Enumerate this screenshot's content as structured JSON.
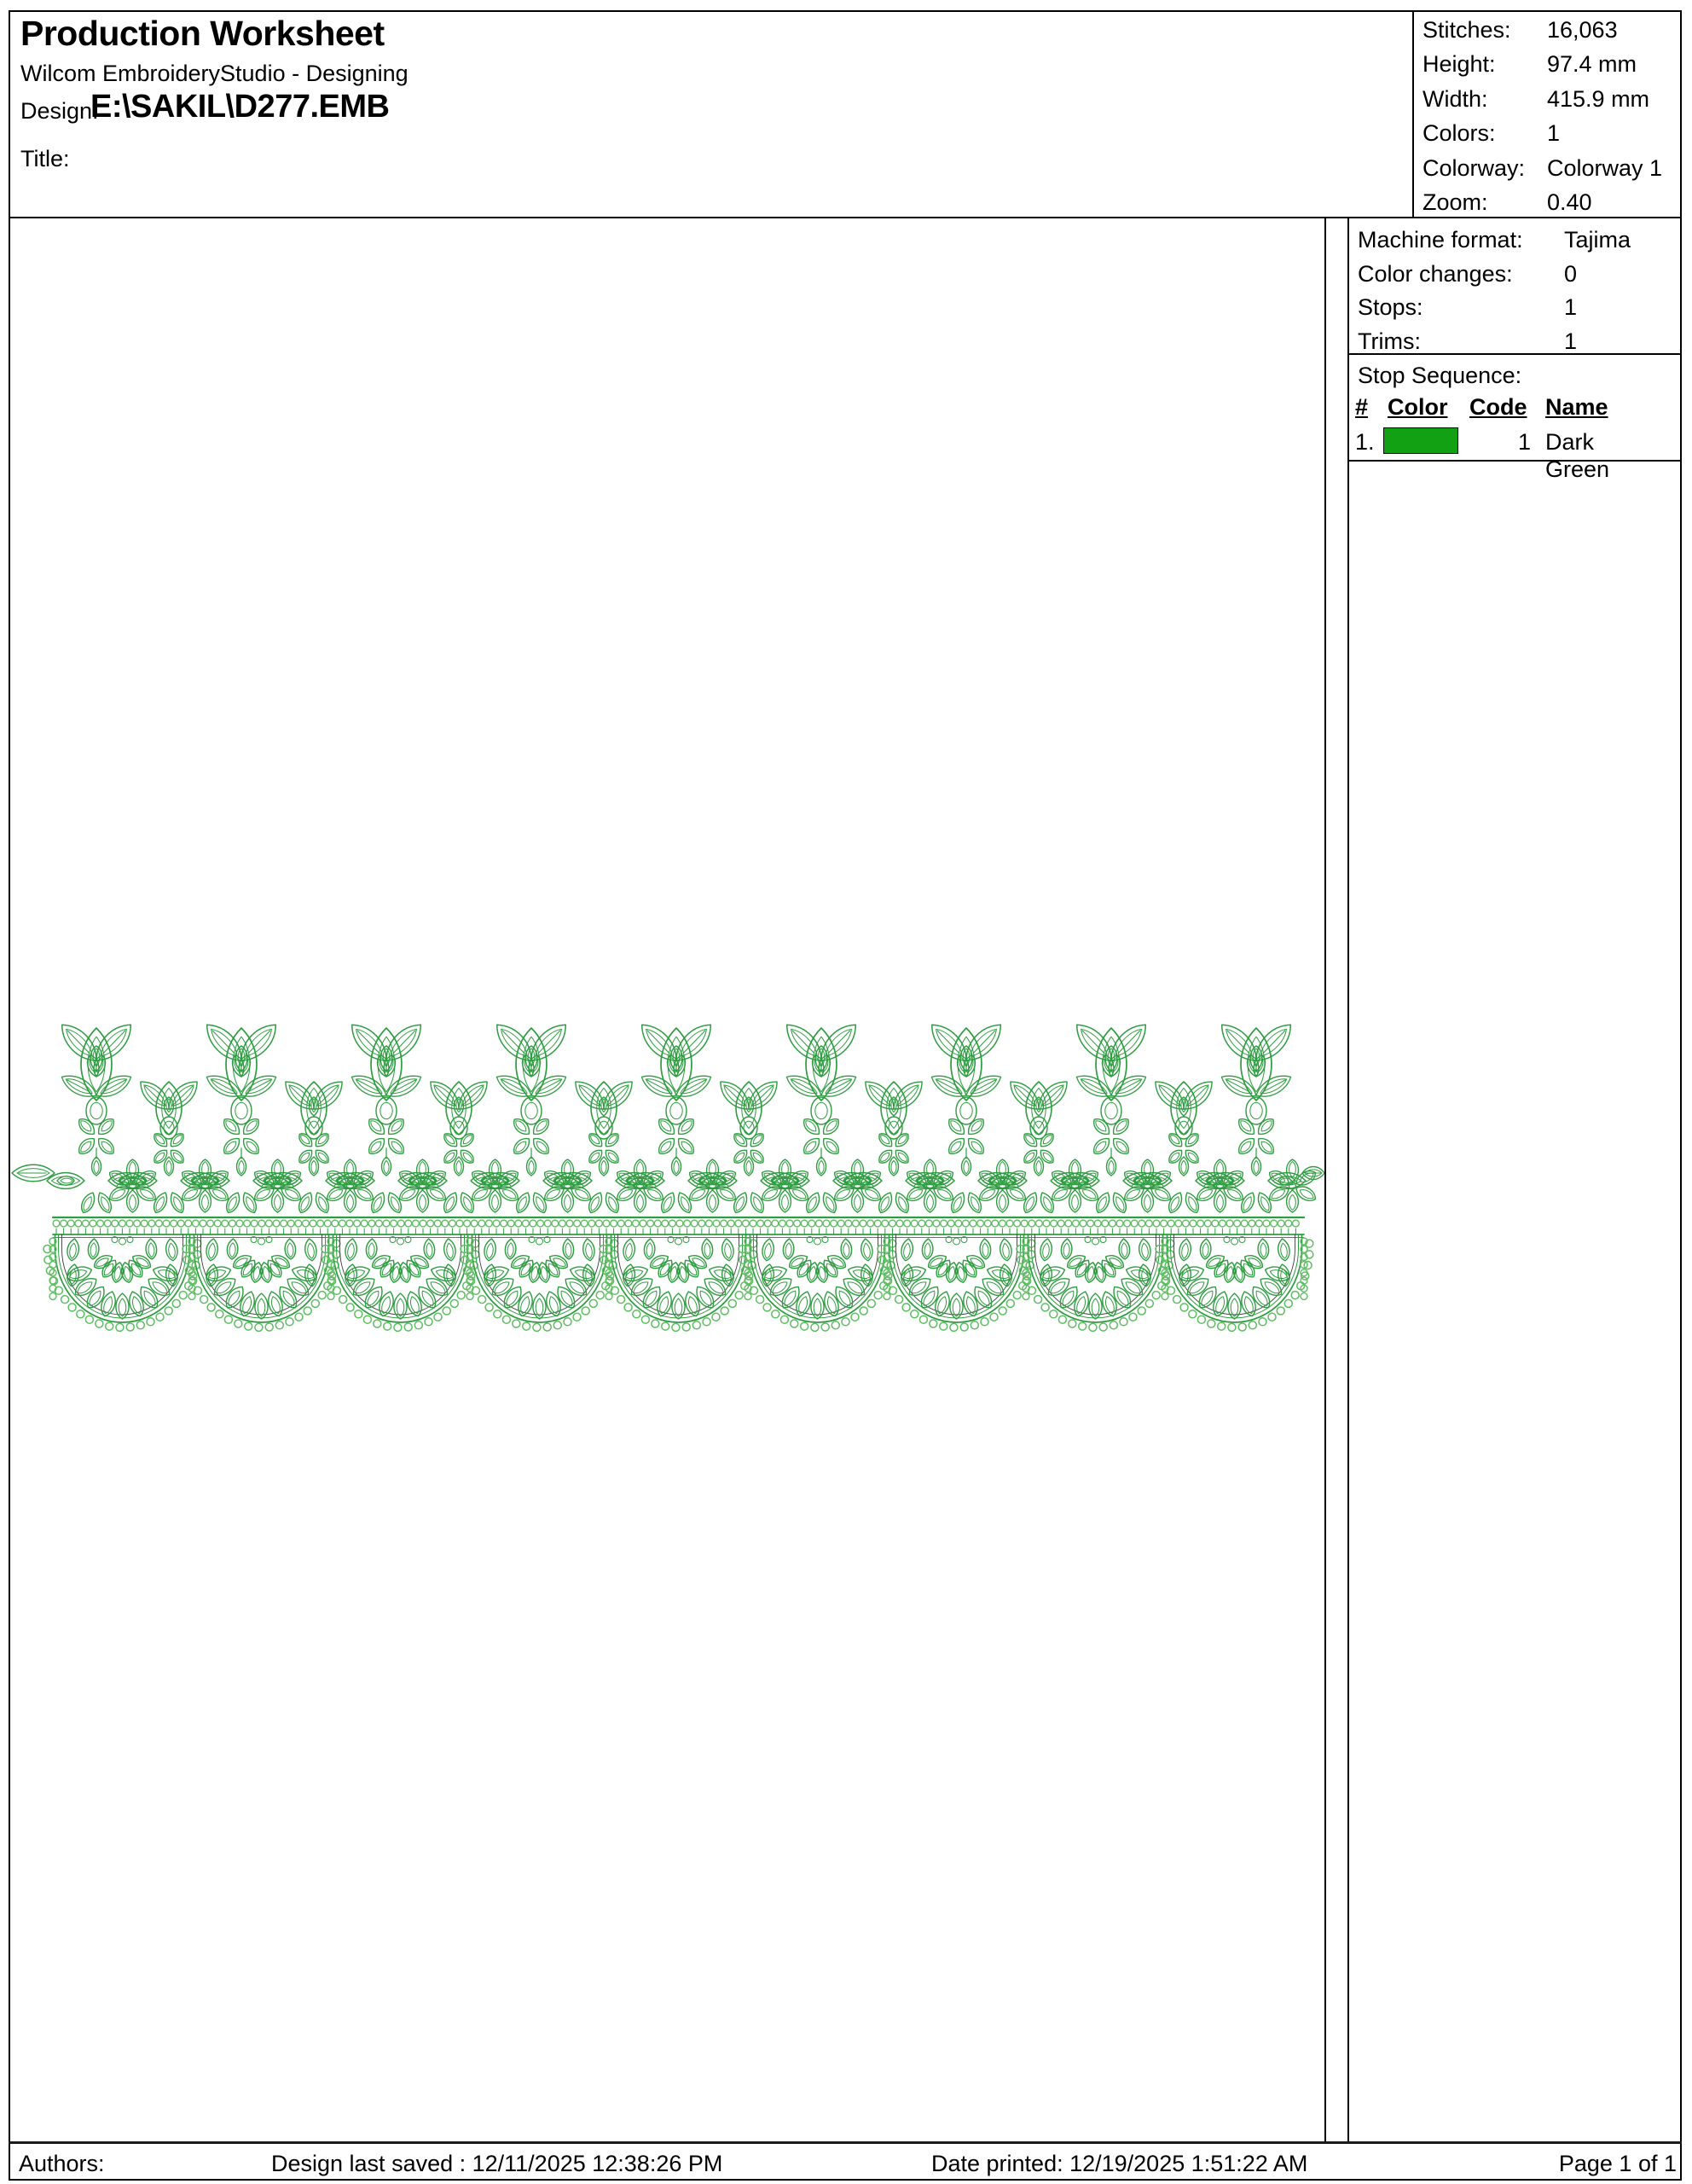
{
  "header": {
    "title": "Production Worksheet",
    "app_name": "Wilcom EmbroideryStudio - Designing",
    "design_label": "Design:",
    "design_value": "E:\\SAKIL\\D277.EMB",
    "title_label": "Title:"
  },
  "stats": {
    "rows": [
      {
        "label": "Stitches:",
        "value": "16,063"
      },
      {
        "label": "Height:",
        "value": "97.4 mm"
      },
      {
        "label": "Width:",
        "value": "415.9 mm"
      },
      {
        "label": "Colors:",
        "value": "1"
      },
      {
        "label": "Colorway:",
        "value": "Colorway 1"
      },
      {
        "label": "Zoom:",
        "value": "0.40"
      }
    ]
  },
  "machine": {
    "rows": [
      {
        "label": "Machine format:",
        "value": "Tajima"
      },
      {
        "label": "Color changes:",
        "value": "0"
      },
      {
        "label": "Stops:",
        "value": "1"
      },
      {
        "label": "Trims:",
        "value": "1"
      }
    ]
  },
  "stop_sequence": {
    "title": "Stop Sequence:",
    "columns": {
      "num": "#",
      "color": "Color",
      "code": "Code",
      "name": "Name"
    },
    "rows": [
      {
        "num": "1.",
        "swatch_color": "#12a112",
        "code": "1",
        "name": "Dark Green"
      }
    ]
  },
  "footer": {
    "authors_label": "Authors:",
    "last_saved": "Design last saved : 12/11/2025 12:38:26 PM",
    "date_printed": "Date printed: 12/19/2025 1:51:22 AM",
    "page": "Page 1 of 1"
  },
  "design": {
    "description": "green lace embroidery border: bud and rosette chain over beaded band with 9 scallops",
    "stitch_color": "#2e9c40",
    "light_color": "#5dbd61",
    "outline_dark": "#3c3c3c"
  }
}
